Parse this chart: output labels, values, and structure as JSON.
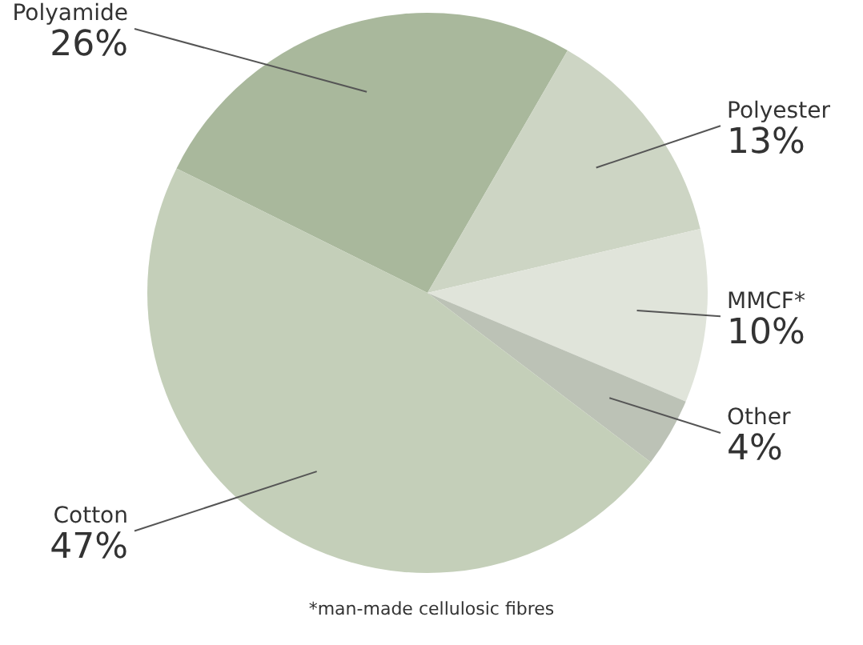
{
  "chart_data": {
    "type": "pie",
    "categories": [
      "Polyamide",
      "Polyester",
      "MMCF*",
      "Other",
      "Cotton"
    ],
    "values": [
      26,
      13,
      10,
      4,
      47
    ],
    "value_labels": [
      "26%",
      "13%",
      "10%",
      "4%",
      "47%"
    ],
    "colors": [
      "#a9b89c",
      "#cdd5c4",
      "#e0e4da",
      "#bcc2b6",
      "#c4cfb9"
    ],
    "annotations": [
      "*man-made cellulosic fibres"
    ],
    "legend": false
  }
}
